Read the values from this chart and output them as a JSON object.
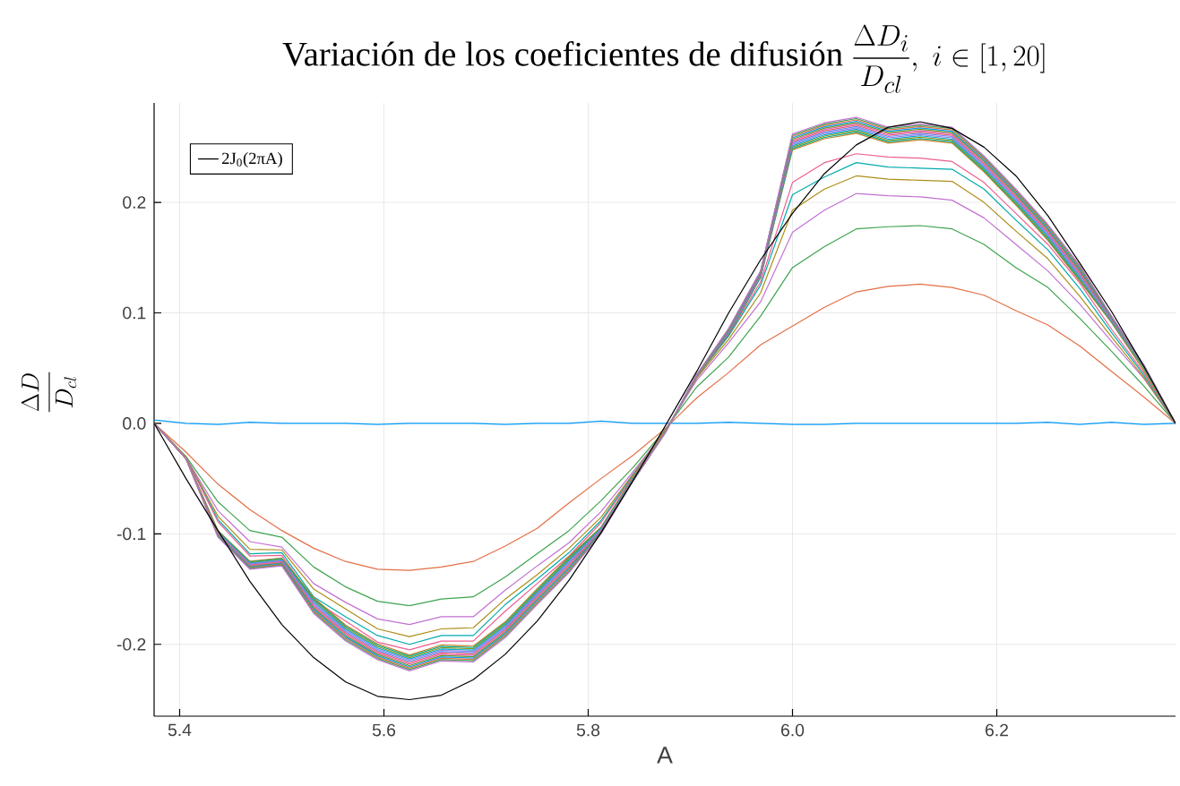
{
  "chart_data": {
    "type": "line",
    "title": "\\text{Variación de los coeficientes de difusión }\\frac{\\Delta D_i}{D_{cl}},\\ i\\in[1,20]",
    "xlabel": "A",
    "ylabel": "\\frac{\\Delta D}{D_{cl}}",
    "x": [
      5.375,
      5.40625,
      5.4375,
      5.46875,
      5.5,
      5.53125,
      5.5625,
      5.59375,
      5.625,
      5.65625,
      5.6875,
      5.71875,
      5.75,
      5.78125,
      5.8125,
      5.84375,
      5.875,
      5.90625,
      5.9375,
      5.96875,
      6.0,
      6.03125,
      6.0625,
      6.09375,
      6.125,
      6.15625,
      6.1875,
      6.21875,
      6.25,
      6.28125,
      6.3125,
      6.34375,
      6.375
    ],
    "series": [
      {
        "color": "#009afa",
        "values": [
          0.003,
          0,
          -0.001,
          0.001,
          0,
          0,
          0,
          -0.001,
          0,
          0,
          0,
          -0.001,
          0,
          0,
          0.002,
          0,
          0,
          0,
          0.001,
          0,
          -0.001,
          -0.001,
          0,
          0,
          0,
          0,
          0,
          0,
          0.001,
          -0.001,
          0.001,
          -0.001,
          0
        ]
      },
      {
        "color": "#e36f47",
        "values": [
          0,
          -0.026,
          -0.055,
          -0.078,
          -0.097,
          -0.113,
          -0.125,
          -0.132,
          -0.133,
          -0.13,
          -0.125,
          -0.111,
          -0.095,
          -0.072,
          -0.05,
          -0.029,
          -0.005,
          0.023,
          0.046,
          0.071,
          0.088,
          0.105,
          0.119,
          0.124,
          0.126,
          0.123,
          0.116,
          0.102,
          0.089,
          0.07,
          0.047,
          0.024,
          0
        ]
      },
      {
        "color": "#3ea44e",
        "values": [
          0,
          -0.03,
          -0.071,
          -0.097,
          -0.103,
          -0.13,
          -0.148,
          -0.161,
          -0.165,
          -0.159,
          -0.157,
          -0.139,
          -0.118,
          -0.097,
          -0.07,
          -0.04,
          -0.006,
          0.033,
          0.06,
          0.097,
          0.141,
          0.16,
          0.176,
          0.178,
          0.179,
          0.176,
          0.162,
          0.141,
          0.123,
          0.095,
          0.065,
          0.034,
          0
        ]
      },
      {
        "color": "#c371d2",
        "values": [
          0,
          -0.031,
          -0.079,
          -0.107,
          -0.112,
          -0.145,
          -0.162,
          -0.177,
          -0.182,
          -0.175,
          -0.175,
          -0.151,
          -0.129,
          -0.108,
          -0.08,
          -0.044,
          -0.007,
          0.039,
          0.073,
          0.11,
          0.173,
          0.193,
          0.208,
          0.206,
          0.205,
          0.202,
          0.186,
          0.162,
          0.138,
          0.108,
          0.074,
          0.041,
          0
        ]
      },
      {
        "color": "#ac8e18",
        "values": [
          0,
          -0.031,
          -0.084,
          -0.114,
          -0.1145,
          -0.15,
          -0.168,
          -0.186,
          -0.193,
          -0.186,
          -0.185,
          -0.159,
          -0.137,
          -0.113,
          -0.085,
          -0.046,
          -0.007,
          0.041,
          0.076,
          0.118,
          0.193,
          0.212,
          0.224,
          0.221,
          0.22,
          0.219,
          0.2,
          0.174,
          0.149,
          0.115,
          0.078,
          0.042,
          0
        ]
      },
      {
        "color": "#00aaae",
        "values": [
          0,
          -0.031,
          -0.087,
          -0.118,
          -0.117,
          -0.157,
          -0.175,
          -0.192,
          -0.2,
          -0.192,
          -0.192,
          -0.164,
          -0.141,
          -0.117,
          -0.088,
          -0.047,
          -0.008,
          0.042,
          0.079,
          0.125,
          0.207,
          0.223,
          0.236,
          0.232,
          0.231,
          0.23,
          0.212,
          0.184,
          0.157,
          0.122,
          0.082,
          0.044,
          0
        ]
      },
      {
        "color": "#ed5e93",
        "values": [
          0,
          -0.031,
          -0.089,
          -0.12,
          -0.1195,
          -0.16,
          -0.179,
          -0.198,
          -0.205,
          -0.197,
          -0.197,
          -0.17,
          -0.145,
          -0.12,
          -0.09,
          -0.048,
          -0.008,
          0.042,
          0.08,
          0.128,
          0.218,
          0.236,
          0.244,
          0.241,
          0.24,
          0.237,
          0.218,
          0.19,
          0.162,
          0.127,
          0.085,
          0.046,
          0
        ]
      },
      {
        "color": "#c68225",
        "values": [
          0,
          -0.031,
          -0.097,
          -0.1248,
          -0.1218,
          -0.1576,
          -0.1826,
          -0.1996,
          -0.2096,
          -0.2006,
          -0.2016,
          -0.1796,
          -0.1496,
          -0.1206,
          -0.094,
          -0.049,
          -0.008,
          0.043,
          0.08,
          0.132,
          0.2476,
          0.2576,
          0.2626,
          0.2536,
          0.2566,
          0.2536,
          0.2276,
          0.1976,
          0.1656,
          0.1286,
          0.091,
          0.048,
          0
        ]
      },
      {
        "color": "#00a98d",
        "values": [
          0,
          -0.032,
          -0.0975,
          -0.1254,
          -0.1224,
          -0.1588,
          -0.1838,
          -0.2008,
          -0.2108,
          -0.2018,
          -0.2028,
          -0.1808,
          -0.1508,
          -0.1218,
          -0.0945,
          -0.05,
          -0.009,
          0.043,
          0.0805,
          0.1325,
          0.2488,
          0.2588,
          0.2638,
          0.2548,
          0.2578,
          0.2548,
          0.2288,
          0.1988,
          0.1668,
          0.1298,
          0.0915,
          0.05,
          0
        ]
      },
      {
        "color": "#8e971e",
        "values": [
          0,
          -0.032,
          -0.098,
          -0.126,
          -0.123,
          -0.16,
          -0.185,
          -0.202,
          -0.212,
          -0.203,
          -0.204,
          -0.182,
          -0.152,
          -0.123,
          -0.095,
          -0.051,
          -0.009,
          0.043,
          0.081,
          0.133,
          0.25,
          0.26,
          0.265,
          0.256,
          0.259,
          0.256,
          0.23,
          0.2,
          0.168,
          0.131,
          0.092,
          0.051,
          0
        ]
      },
      {
        "color": "#00a9cd",
        "values": [
          null,
          null,
          -0.0985,
          -0.1266,
          -0.1236,
          -0.1612,
          -0.1862,
          -0.2032,
          -0.2132,
          -0.2042,
          -0.2052,
          -0.1832,
          -0.1532,
          -0.1242,
          -0.0955,
          -0.051,
          -0.009,
          0.044,
          0.0815,
          0.1335,
          0.2512,
          0.2612,
          0.2662,
          0.2572,
          0.2602,
          0.2572,
          0.2312,
          0.2012,
          0.1692,
          0.1322,
          0.0925,
          0.052,
          0
        ]
      },
      {
        "color": "#9b7fe9",
        "values": [
          0,
          -0.032,
          -0.099,
          -0.1272,
          -0.1242,
          -0.1624,
          -0.1874,
          -0.2044,
          -0.2144,
          -0.2054,
          -0.2064,
          -0.1844,
          -0.1544,
          -0.1254,
          -0.096,
          -0.051,
          -0.009,
          0.044,
          0.082,
          0.134,
          0.2524,
          0.2624,
          0.2674,
          0.2584,
          0.2614,
          0.2584,
          0.2324,
          0.2024,
          0.1704,
          0.1334,
          0.093,
          0.052,
          0
        ]
      },
      {
        "color": "#618df6",
        "values": [
          0,
          -0.032,
          -0.0995,
          -0.1278,
          -0.1248,
          -0.1636,
          -0.1886,
          -0.2056,
          -0.2156,
          -0.2066,
          -0.2076,
          -0.1856,
          -0.1556,
          -0.1266,
          -0.0965,
          -0.052,
          -0.009,
          0.044,
          0.0825,
          0.1345,
          0.2536,
          0.2636,
          0.2686,
          0.2596,
          0.2626,
          0.2596,
          0.2336,
          0.2036,
          0.1716,
          0.1346,
          0.0935,
          0.052,
          0
        ]
      },
      {
        "color": "#f05f73",
        "values": [
          0,
          -0.032,
          -0.1,
          -0.1284,
          -0.1254,
          -0.1648,
          -0.1898,
          -0.2068,
          -0.2168,
          -0.2078,
          -0.2088,
          -0.1868,
          -0.1568,
          -0.1278,
          -0.097,
          -0.052,
          -0.009,
          0.044,
          0.083,
          0.135,
          0.2548,
          0.2648,
          0.2698,
          0.2608,
          0.2638,
          0.2608,
          0.2348,
          0.2048,
          0.1728,
          0.1358,
          0.094,
          0.053,
          0
        ]
      },
      {
        "color": "#dd64b5",
        "values": [
          0,
          -0.032,
          -0.1005,
          -0.129,
          -0.126,
          -0.166,
          -0.191,
          -0.208,
          -0.218,
          -0.209,
          -0.21,
          -0.188,
          -0.158,
          -0.129,
          -0.0975,
          -0.052,
          -0.009,
          0.044,
          0.0835,
          0.1355,
          0.256,
          0.266,
          0.271,
          0.262,
          0.265,
          0.262,
          0.236,
          0.206,
          0.174,
          0.137,
          0.0945,
          0.053,
          0
        ]
      },
      {
        "color": "#6a9b1d",
        "values": [
          0,
          -0.032,
          -0.101,
          -0.1296,
          -0.1266,
          -0.1672,
          -0.1922,
          -0.2092,
          -0.2192,
          -0.2102,
          -0.2112,
          -0.1892,
          -0.1592,
          -0.1302,
          -0.098,
          -0.052,
          -0.009,
          0.044,
          0.084,
          0.136,
          0.2572,
          0.2672,
          0.2722,
          0.2632,
          0.2662,
          0.2632,
          0.2372,
          0.2072,
          0.1752,
          0.1382,
          0.095,
          0.053,
          0
        ]
      },
      {
        "color": "#009afa",
        "values": [
          null,
          null,
          -0.1015,
          -0.1302,
          -0.1272,
          -0.1684,
          -0.1934,
          -0.2104,
          -0.2204,
          -0.2114,
          -0.2124,
          -0.1904,
          -0.1604,
          -0.1314,
          -0.0985,
          -0.052,
          -0.009,
          0.044,
          0.0845,
          0.1365,
          0.2584,
          0.2684,
          0.2734,
          0.2644,
          0.2674,
          0.2644,
          0.2384,
          0.2084,
          0.1764,
          0.1394,
          0.0955,
          0.053,
          0
        ]
      },
      {
        "color": "#e36f47",
        "values": [
          0,
          -0.032,
          -0.102,
          -0.1308,
          -0.1278,
          -0.1696,
          -0.1946,
          -0.2116,
          -0.2216,
          -0.2126,
          -0.2136,
          -0.1916,
          -0.1616,
          -0.1326,
          -0.099,
          -0.052,
          -0.009,
          0.044,
          0.085,
          0.137,
          0.2596,
          0.2696,
          0.2746,
          0.2656,
          0.2686,
          0.2656,
          0.2396,
          0.2096,
          0.1776,
          0.1406,
          0.096,
          0.053,
          0
        ]
      },
      {
        "color": "#3ea44e",
        "values": [
          0,
          -0.032,
          -0.1025,
          -0.1314,
          -0.1284,
          -0.1708,
          -0.1958,
          -0.2128,
          -0.2228,
          -0.2138,
          -0.2148,
          -0.1928,
          -0.1628,
          -0.1338,
          -0.0995,
          -0.052,
          -0.009,
          0.044,
          0.0855,
          0.1375,
          0.2608,
          0.2708,
          0.2758,
          0.2668,
          0.2698,
          0.2668,
          0.2408,
          0.2108,
          0.1788,
          0.1418,
          0.0965,
          0.053,
          0
        ]
      },
      {
        "color": "#c371d2",
        "values": [
          0,
          -0.032,
          -0.103,
          -0.132,
          -0.129,
          -0.172,
          -0.197,
          -0.214,
          -0.224,
          -0.215,
          -0.216,
          -0.194,
          -0.164,
          -0.135,
          -0.1,
          -0.052,
          -0.009,
          0.044,
          0.086,
          0.138,
          0.262,
          0.272,
          0.277,
          0.268,
          0.271,
          0.268,
          0.242,
          0.212,
          0.18,
          0.143,
          0.097,
          0.053,
          0
        ]
      },
      {
        "name": "2J$_{0}$(2πA)",
        "color": "#000000",
        "values": [
          0,
          -0.05,
          -0.097,
          -0.143,
          -0.182,
          -0.212,
          -0.234,
          -0.247,
          -0.25,
          -0.246,
          -0.232,
          -0.209,
          -0.179,
          -0.142,
          -0.099,
          -0.052,
          -0.003,
          0.047,
          0.1,
          0.148,
          0.19,
          0.226,
          0.252,
          0.268,
          0.273,
          0.267,
          0.25,
          0.224,
          0.188,
          0.145,
          0.101,
          0.052,
          0
        ]
      }
    ],
    "xlim": [
      5.375,
      6.375
    ],
    "ylim": [
      -0.265,
      0.29
    ],
    "xticks": [
      5.4,
      5.6,
      5.8,
      {
        "value": 6.0,
        "label": "6.0"
      },
      6.2
    ],
    "yticks": [
      -0.2,
      -0.1,
      {
        "value": 0,
        "label": "0.0"
      },
      0.1,
      0.2
    ],
    "grid": true,
    "legend": "top left"
  }
}
